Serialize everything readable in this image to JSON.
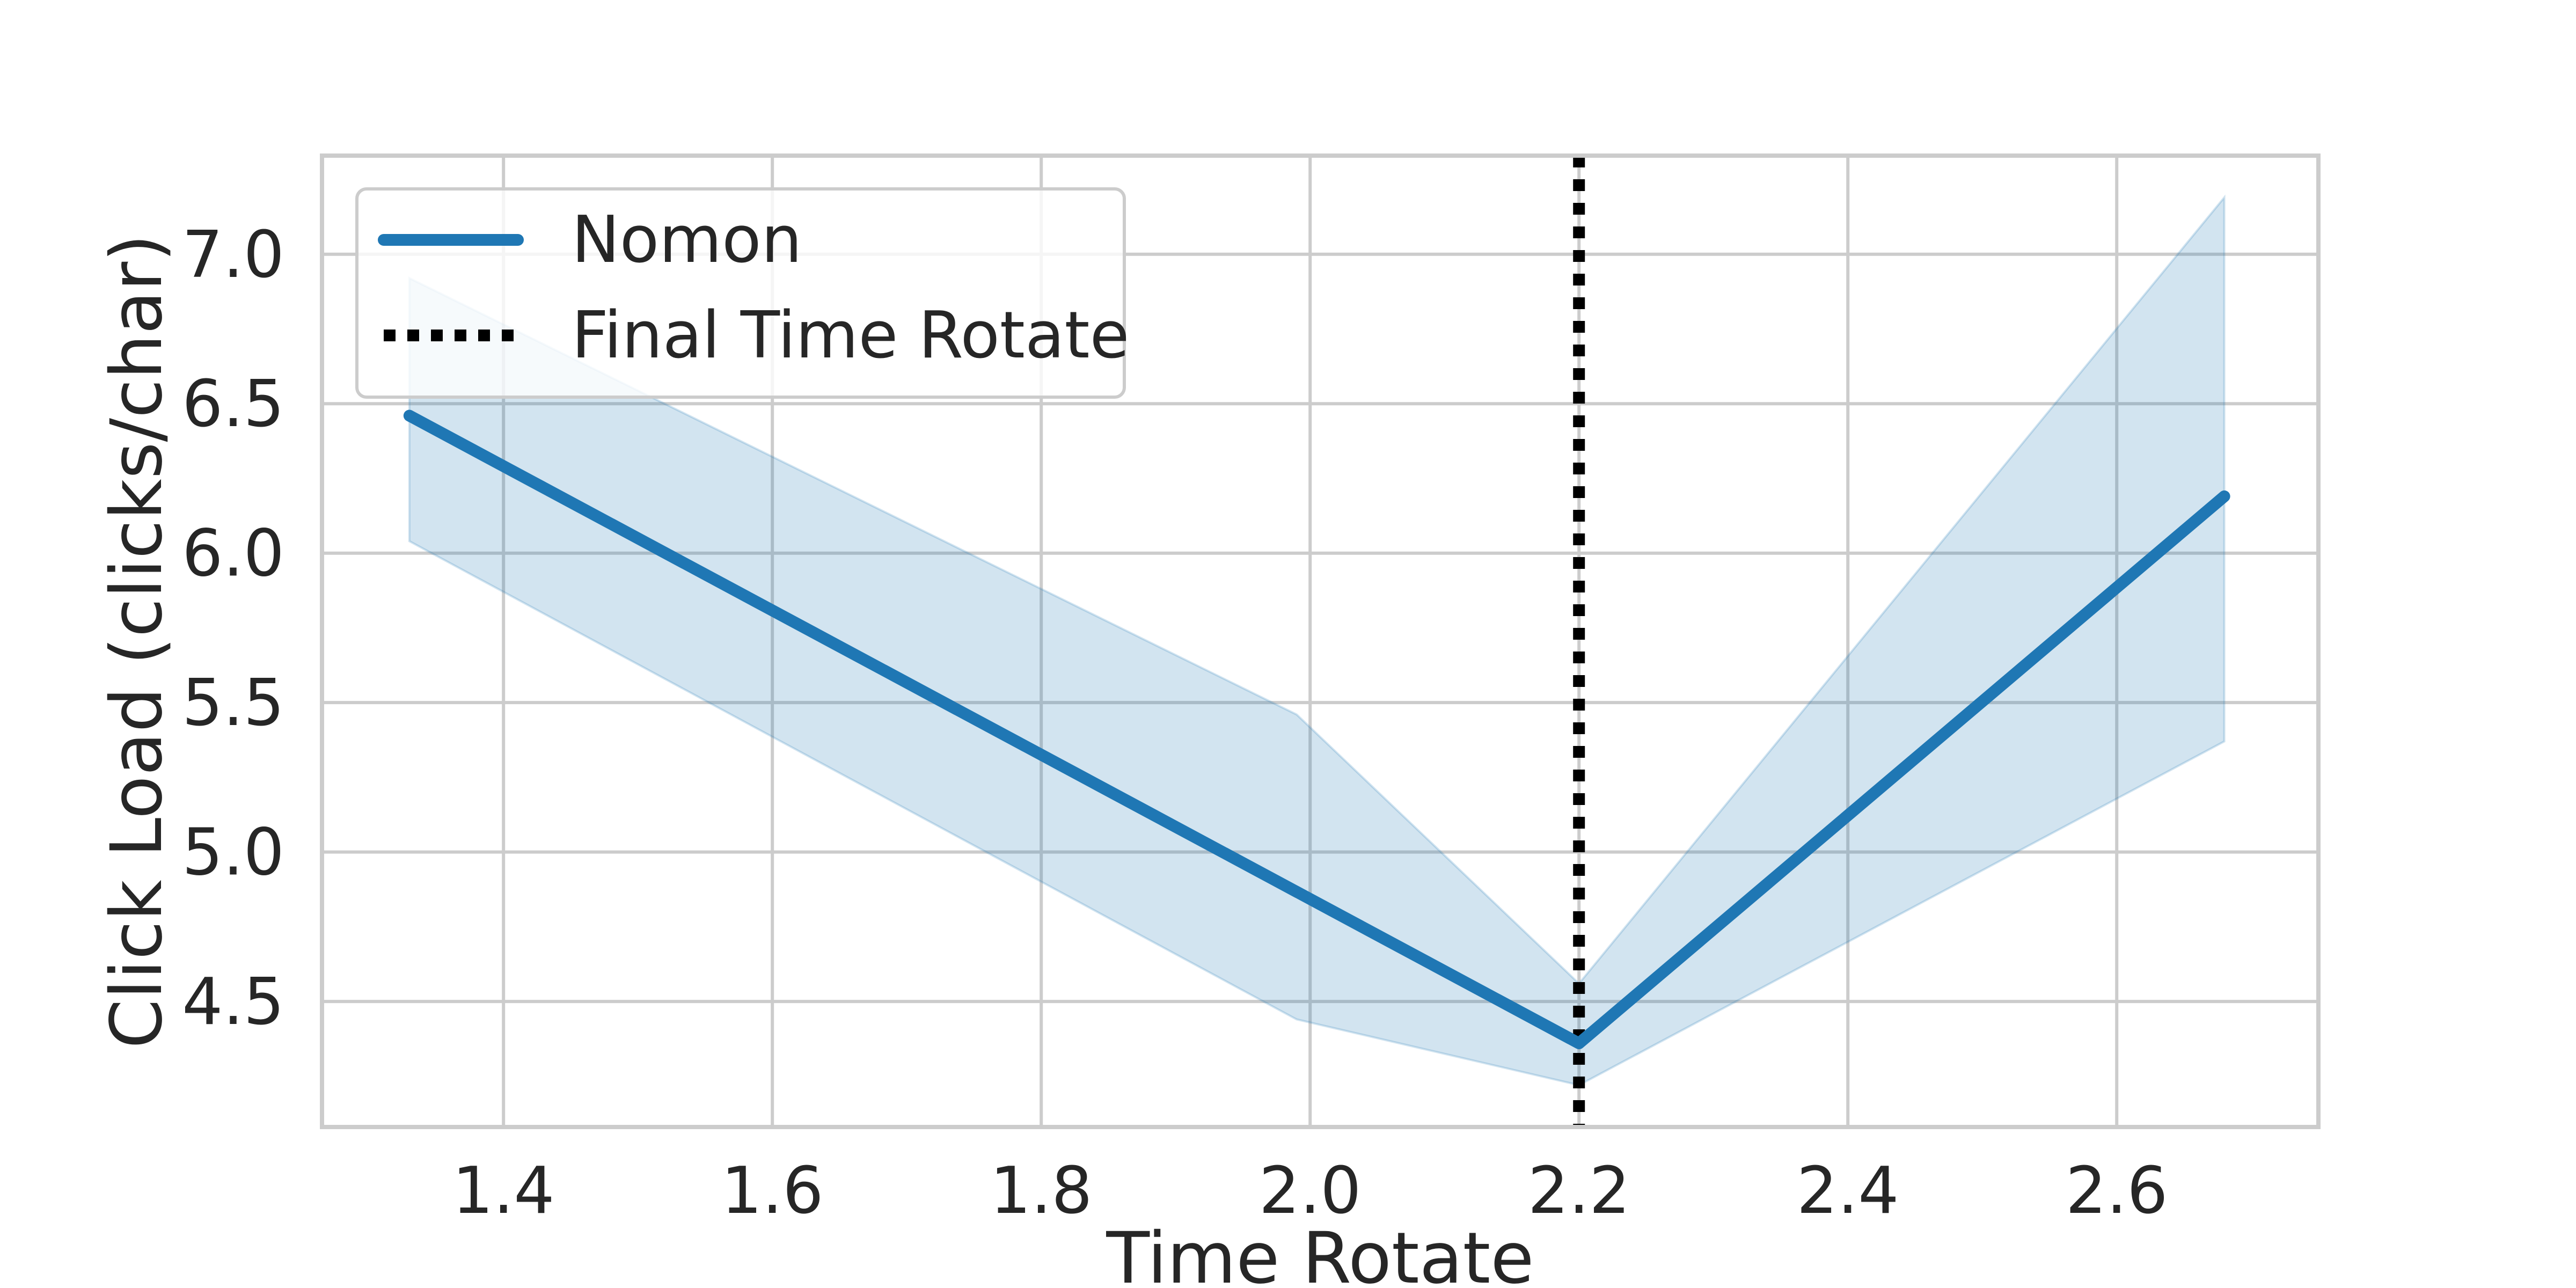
{
  "chart_data": {
    "type": "line",
    "xlabel": "Time Rotate",
    "ylabel": "Click Load (clicks/char)",
    "xlim": [
      1.265,
      2.75
    ],
    "ylim": [
      4.08,
      7.33
    ],
    "xticks": [
      "1.4",
      "1.6",
      "1.8",
      "2.0",
      "2.2",
      "2.4",
      "2.6"
    ],
    "yticks": [
      "4.5",
      "5.0",
      "5.5",
      "6.0",
      "6.5",
      "7.0"
    ],
    "grid": true,
    "legend_position": "upper-left",
    "series": [
      {
        "name": "Nomon",
        "color": "#1f77b4",
        "x": [
          1.33,
          2.2,
          2.68
        ],
        "y": [
          6.46,
          4.36,
          6.19
        ],
        "band_upper": [
          6.92,
          5.46,
          4.56,
          7.19
        ],
        "band_lower": [
          6.04,
          4.44,
          4.22,
          5.37
        ],
        "band_x": [
          1.33,
          1.99,
          2.2,
          2.68
        ]
      }
    ],
    "vline": {
      "name": "Final Time Rotate",
      "x": 2.2,
      "color": "#000000",
      "style": "dotted"
    }
  }
}
